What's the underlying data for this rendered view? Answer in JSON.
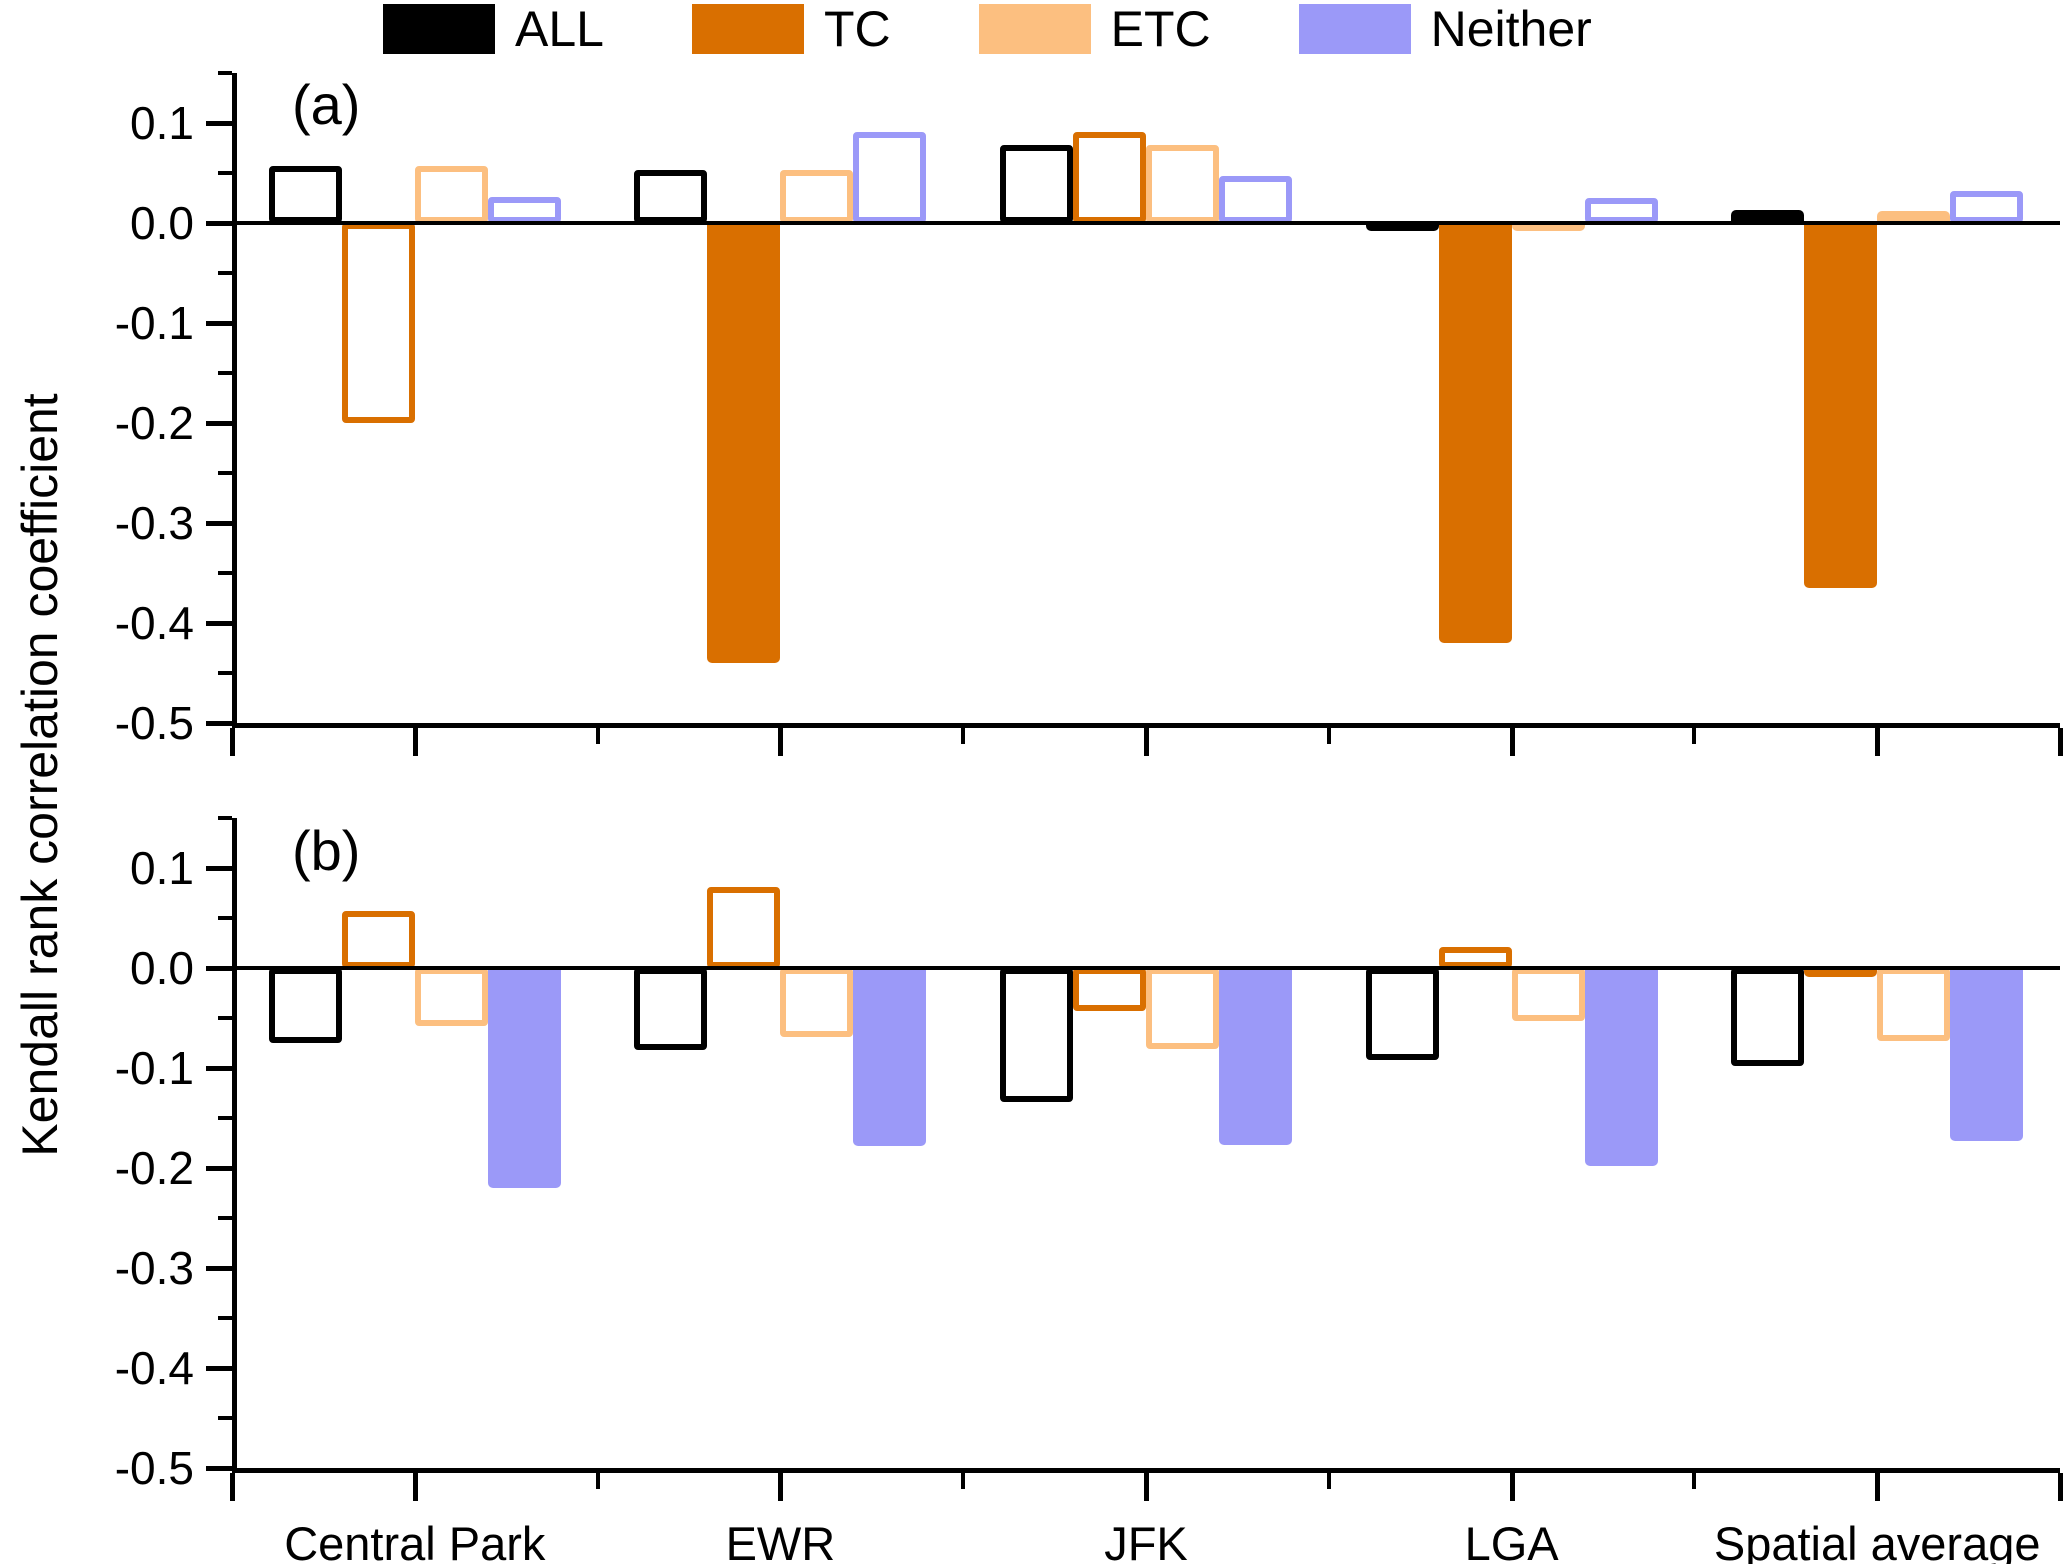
{
  "legend": {
    "items": [
      {
        "label": "ALL",
        "color": "#000000"
      },
      {
        "label": "TC",
        "color": "#d96f00"
      },
      {
        "label": "ETC",
        "color": "#fcbf80"
      },
      {
        "label": "Neither",
        "color": "#9b99f8"
      }
    ]
  },
  "y_axis": {
    "title": "Kendall rank correlation coefficient",
    "major_ticks": [
      0.1,
      0.0,
      -0.1,
      -0.2,
      -0.3,
      -0.4,
      -0.5
    ],
    "major_tick_labels": [
      "0.1",
      "0.0",
      "-0.1",
      "-0.2",
      "-0.3",
      "-0.4",
      "-0.5"
    ],
    "minor_ticks": [
      0.15,
      0.05,
      -0.05,
      -0.15,
      -0.25,
      -0.35,
      -0.45
    ],
    "range": [
      -0.5,
      0.15
    ]
  },
  "x_axis": {
    "categories": [
      "Central Park",
      "EWR",
      "JFK",
      "LGA",
      "Spatial average"
    ]
  },
  "chart_data": [
    {
      "type": "bar",
      "panel_label": "(a)",
      "categories": [
        "Central Park",
        "EWR",
        "JFK",
        "LGA",
        "Spatial average"
      ],
      "ylim": [
        -0.5,
        0.15
      ],
      "grid": false,
      "legend_position": "top",
      "series": [
        {
          "name": "ALL",
          "color": "#000000",
          "values": [
            0.057,
            0.053,
            0.078,
            -0.005,
            0.013
          ],
          "filled": [
            false,
            false,
            false,
            false,
            false
          ]
        },
        {
          "name": "TC",
          "color": "#d96f00",
          "values": [
            -0.2,
            -0.44,
            0.091,
            -0.42,
            -0.365
          ],
          "filled": [
            false,
            true,
            false,
            true,
            true
          ]
        },
        {
          "name": "ETC",
          "color": "#fcbf80",
          "values": [
            0.057,
            0.053,
            0.078,
            -0.006,
            0.012
          ],
          "filled": [
            false,
            false,
            false,
            false,
            false
          ]
        },
        {
          "name": "Neither",
          "color": "#9b99f8",
          "values": [
            0.026,
            0.091,
            0.047,
            0.025,
            0.032
          ],
          "filled": [
            false,
            false,
            false,
            false,
            false
          ]
        }
      ]
    },
    {
      "type": "bar",
      "panel_label": "(b)",
      "categories": [
        "Central Park",
        "EWR",
        "JFK",
        "LGA",
        "Spatial average"
      ],
      "ylim": [
        -0.5,
        0.15
      ],
      "grid": false,
      "legend_position": "none",
      "series": [
        {
          "name": "ALL",
          "color": "#000000",
          "values": [
            -0.075,
            -0.082,
            -0.134,
            -0.092,
            -0.098
          ],
          "filled": [
            false,
            false,
            false,
            false,
            false
          ]
        },
        {
          "name": "TC",
          "color": "#d96f00",
          "values": [
            0.057,
            0.081,
            -0.043,
            0.021,
            -0.009
          ],
          "filled": [
            false,
            false,
            false,
            false,
            true
          ]
        },
        {
          "name": "ETC",
          "color": "#fcbf80",
          "values": [
            -0.058,
            -0.069,
            -0.081,
            -0.053,
            -0.073
          ],
          "filled": [
            false,
            false,
            false,
            false,
            false
          ]
        },
        {
          "name": "Neither",
          "color": "#9b99f8",
          "values": [
            -0.22,
            -0.178,
            -0.177,
            -0.198,
            -0.173
          ],
          "filled": [
            true,
            true,
            true,
            true,
            true
          ]
        }
      ]
    }
  ]
}
